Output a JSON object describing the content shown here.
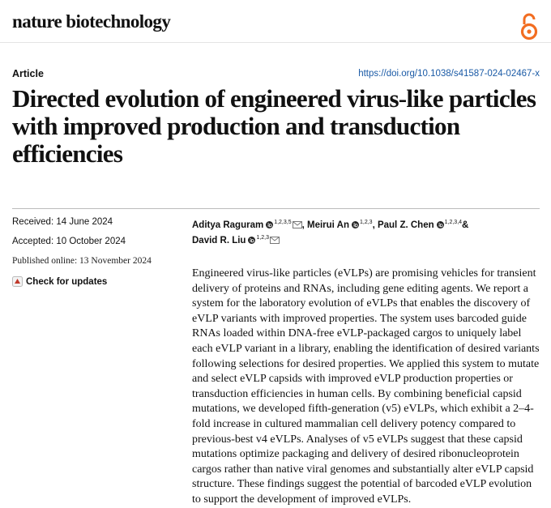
{
  "header": {
    "journal": "nature biotechnology",
    "article_type": "Article",
    "doi": "https://doi.org/10.1038/s41587-024-02467-x"
  },
  "title": "Directed evolution of engineered virus-like particles with improved production and transduction efficiencies",
  "dates": {
    "received": "Received: 14 June 2024",
    "accepted": "Accepted: 10 October 2024",
    "published": "Published online: 13 November 2024"
  },
  "check_updates": "Check for updates",
  "authors": [
    {
      "name": "Aditya Raguram",
      "affiliations": "1,2,3,5",
      "suffix": ","
    },
    {
      "name": "Meirui An",
      "affiliations": "1,2,3",
      "suffix": ","
    },
    {
      "name": "Paul Z. Chen",
      "affiliations": "1,2,3,4",
      "suffix": "&"
    },
    {
      "name": "David R. Liu",
      "affiliations": "1,2,3",
      "suffix": ""
    }
  ],
  "abstract": "Engineered virus-like particles (eVLPs) are promising vehicles for transient delivery of proteins and RNAs, including gene editing agents. We report a system for the laboratory evolution of eVLPs that enables the discovery of eVLP variants with improved properties. The system uses barcoded guide RNAs loaded within DNA-free eVLP-packaged cargos to uniquely label each eVLP variant in a library, enabling the identification of desired variants following selections for desired properties. We applied this system to mutate and select eVLP capsids with improved eVLP production properties or transduction efficiencies in human cells. By combining beneficial capsid mutations, we developed fifth-generation (v5) eVLPs, which exhibit a 2–4-fold increase in cultured mammalian cell delivery potency compared to previous-best v4 eVLPs. Analyses of v5 eVLPs suggest that these capsid mutations optimize packaging and delivery of desired ribonucleoprotein cargos rather than native viral genomes and substantially alter eVLP capsid structure. These findings suggest the potential of barcoded eVLP evolution to support the development of improved eVLPs."
}
